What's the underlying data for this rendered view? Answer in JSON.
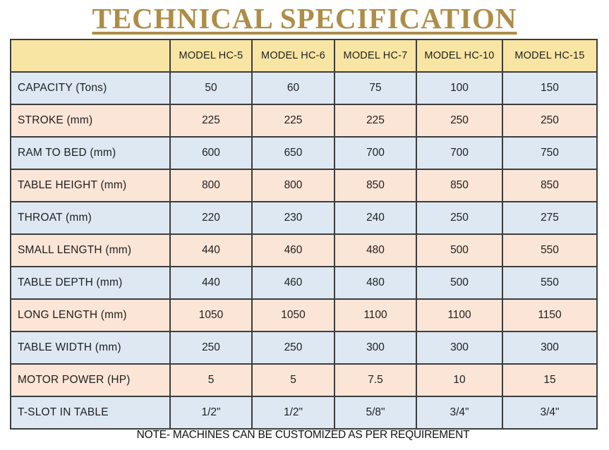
{
  "title": "TECHNICAL SPECIFICATION",
  "note": "NOTE- MACHINES CAN BE CUSTOMIZED AS PER REQUIREMENT",
  "colors": {
    "title_gold": "#AE8D48",
    "header_bg": "#F8E5A3",
    "row_blue": "#DDE8F3",
    "row_peach": "#FBE5D6",
    "border": "#3d3d3d"
  },
  "table": {
    "columns": [
      "",
      "MODEL HC-5",
      "MODEL HC-6",
      "MODEL HC-7",
      "MODEL HC-10",
      "MODEL HC-15"
    ],
    "rows": [
      {
        "label": "CAPACITY (Tons)",
        "values": [
          "50",
          "60",
          "75",
          "100",
          "150"
        ]
      },
      {
        "label": "STROKE (mm)",
        "values": [
          "225",
          "225",
          "225",
          "250",
          "250"
        ]
      },
      {
        "label": "RAM TO BED (mm)",
        "values": [
          "600",
          "650",
          "700",
          "700",
          "750"
        ]
      },
      {
        "label": "TABLE HEIGHT (mm)",
        "values": [
          "800",
          "800",
          "850",
          "850",
          "850"
        ]
      },
      {
        "label": "THROAT (mm)",
        "values": [
          "220",
          "230",
          "240",
          "250",
          "275"
        ]
      },
      {
        "label": "SMALL LENGTH (mm)",
        "values": [
          "440",
          "460",
          "480",
          "500",
          "550"
        ]
      },
      {
        "label": "TABLE DEPTH (mm)",
        "values": [
          "440",
          "460",
          "480",
          "500",
          "550"
        ]
      },
      {
        "label": "LONG LENGTH (mm)",
        "values": [
          "1050",
          "1050",
          "1100",
          "1100",
          "1150"
        ]
      },
      {
        "label": "TABLE WIDTH (mm)",
        "values": [
          "250",
          "250",
          "300",
          "300",
          "300"
        ]
      },
      {
        "label": "MOTOR POWER (HP)",
        "values": [
          "5",
          "5",
          "7.5",
          "10",
          "15"
        ]
      },
      {
        "label": "T-SLOT IN TABLE",
        "values": [
          "1/2\"",
          "1/2\"",
          "5/8\"",
          "3/4\"",
          "3/4\""
        ]
      }
    ]
  }
}
